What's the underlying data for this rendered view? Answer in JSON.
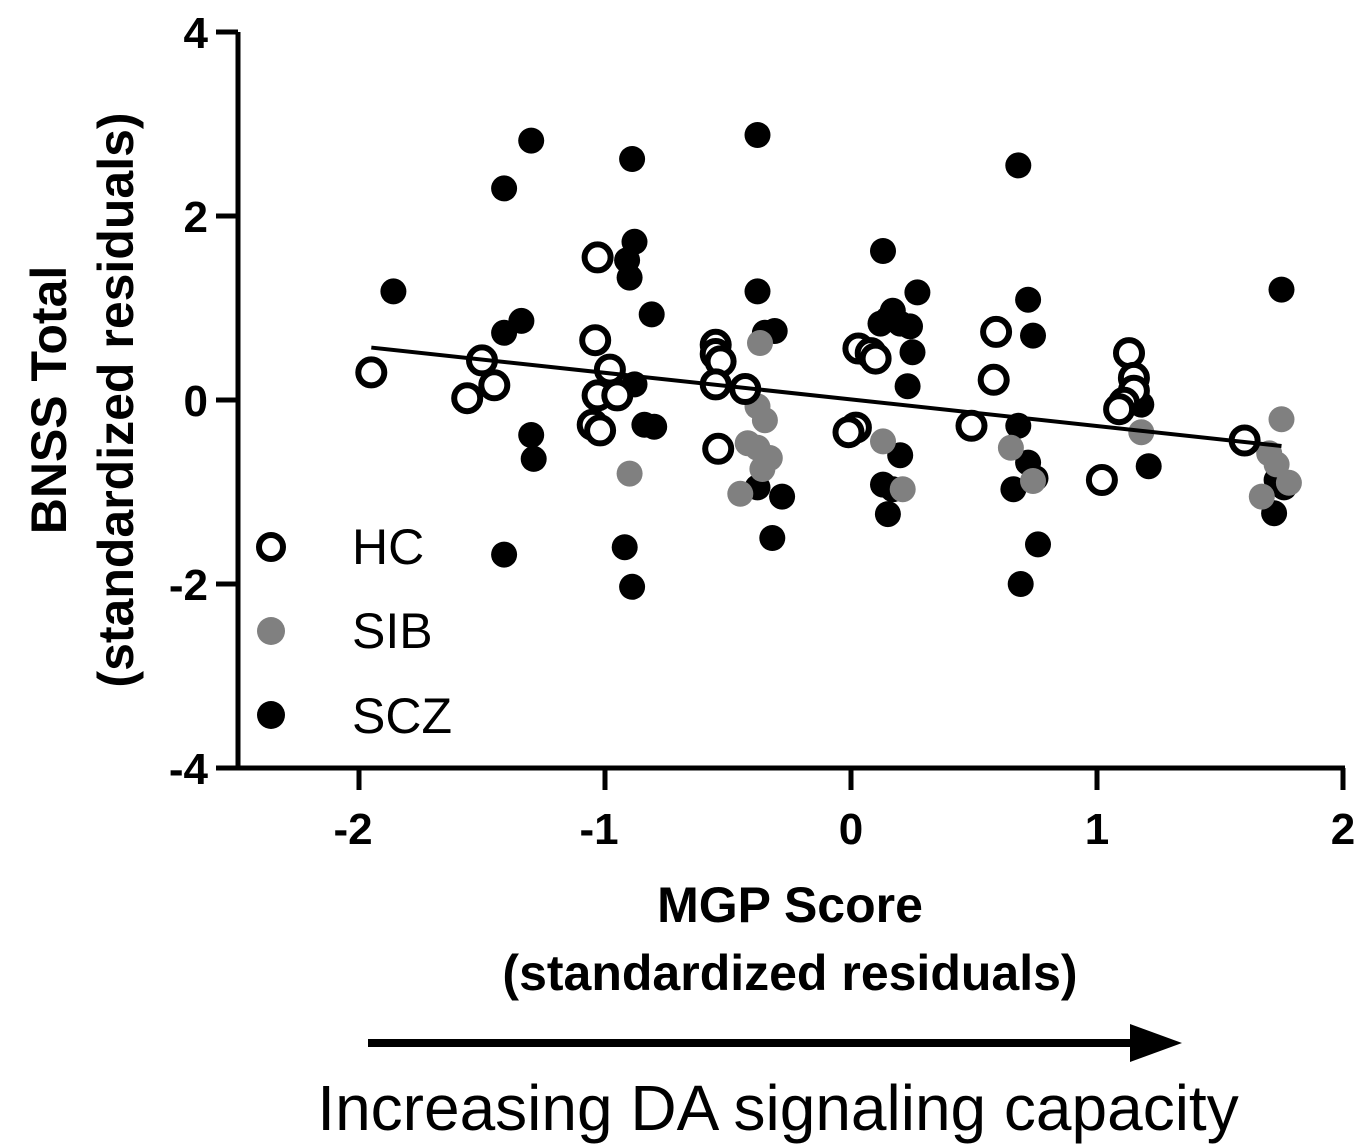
{
  "chart_data": {
    "type": "scatter",
    "title": "",
    "xlabel": [
      "MGP Score",
      "(standardized residuals)"
    ],
    "ylabel": [
      "BNSS Total",
      "(standardized residuals)"
    ],
    "xlim": [
      -2.5,
      2
    ],
    "ylim": [
      -4,
      4
    ],
    "x_ticks": [
      -2,
      -1,
      0,
      1,
      2
    ],
    "y_ticks": [
      4,
      2,
      0,
      -2,
      -4
    ],
    "x_tick_labels": [
      "-2",
      "-1",
      "0",
      "1",
      "2"
    ],
    "y_tick_labels": [
      "4",
      "2",
      "0",
      "-2",
      "-4"
    ],
    "grid": false,
    "legend_position": "bottom-left",
    "series": [
      {
        "name": "HC",
        "marker": "open-circle",
        "color": "#000000",
        "points": [
          [
            -1.95,
            0.3
          ],
          [
            -1.56,
            0.02
          ],
          [
            -1.5,
            0.43
          ],
          [
            -1.45,
            0.16
          ],
          [
            -1.03,
            1.55
          ],
          [
            -1.04,
            0.65
          ],
          [
            -0.98,
            0.33
          ],
          [
            -1.03,
            0.05
          ],
          [
            -0.95,
            0.05
          ],
          [
            -1.05,
            -0.27
          ],
          [
            -1.02,
            -0.33
          ],
          [
            -0.55,
            0.6
          ],
          [
            -0.55,
            0.5
          ],
          [
            -0.53,
            0.42
          ],
          [
            -0.55,
            0.17
          ],
          [
            -0.43,
            0.12
          ],
          [
            -0.54,
            -0.53
          ],
          [
            0.03,
            0.56
          ],
          [
            0.08,
            0.51
          ],
          [
            0.1,
            0.45
          ],
          [
            0.02,
            -0.3
          ],
          [
            -0.01,
            -0.35
          ],
          [
            0.59,
            0.74
          ],
          [
            0.58,
            0.22
          ],
          [
            0.49,
            -0.28
          ],
          [
            1.13,
            0.51
          ],
          [
            1.15,
            0.24
          ],
          [
            1.15,
            0.1
          ],
          [
            1.11,
            -0.03
          ],
          [
            1.09,
            -0.1
          ],
          [
            1.02,
            -0.87
          ],
          [
            1.6,
            -0.44
          ]
        ]
      },
      {
        "name": "SIB",
        "marker": "filled-circle",
        "color": "#808080",
        "points": [
          [
            -0.9,
            -0.8
          ],
          [
            -0.37,
            0.62
          ],
          [
            -0.38,
            -0.07
          ],
          [
            -0.35,
            -0.22
          ],
          [
            -0.42,
            -0.47
          ],
          [
            -0.38,
            -0.52
          ],
          [
            -0.33,
            -0.63
          ],
          [
            -0.36,
            -0.75
          ],
          [
            -0.45,
            -1.02
          ],
          [
            0.13,
            -0.45
          ],
          [
            0.21,
            -0.97
          ],
          [
            0.65,
            -0.52
          ],
          [
            0.74,
            -0.88
          ],
          [
            1.18,
            -0.35
          ],
          [
            1.75,
            -0.21
          ],
          [
            1.7,
            -0.58
          ],
          [
            1.73,
            -0.7
          ],
          [
            1.78,
            -0.9
          ],
          [
            1.67,
            -1.05
          ]
        ]
      },
      {
        "name": "SCZ",
        "marker": "filled-circle",
        "color": "#000000",
        "points": [
          [
            -1.86,
            1.18
          ],
          [
            -1.41,
            2.3
          ],
          [
            -1.3,
            2.82
          ],
          [
            -1.41,
            0.73
          ],
          [
            -1.34,
            0.86
          ],
          [
            -1.3,
            -0.38
          ],
          [
            -1.29,
            -0.64
          ],
          [
            -1.41,
            -1.68
          ],
          [
            -0.89,
            2.62
          ],
          [
            -0.88,
            1.72
          ],
          [
            -0.91,
            1.52
          ],
          [
            -0.9,
            1.33
          ],
          [
            -0.81,
            0.93
          ],
          [
            -0.88,
            0.17
          ],
          [
            -0.84,
            -0.27
          ],
          [
            -0.8,
            -0.29
          ],
          [
            -0.92,
            -1.6
          ],
          [
            -0.89,
            -2.03
          ],
          [
            -0.38,
            2.88
          ],
          [
            -0.38,
            1.18
          ],
          [
            -0.35,
            0.73
          ],
          [
            -0.31,
            0.75
          ],
          [
            -0.38,
            -0.95
          ],
          [
            -0.28,
            -1.05
          ],
          [
            -0.32,
            -1.5
          ],
          [
            0.13,
            1.62
          ],
          [
            0.12,
            0.83
          ],
          [
            0.15,
            0.88
          ],
          [
            0.17,
            0.97
          ],
          [
            0.2,
            0.83
          ],
          [
            0.24,
            0.8
          ],
          [
            0.25,
            0.52
          ],
          [
            0.27,
            1.17
          ],
          [
            0.23,
            0.15
          ],
          [
            0.2,
            -0.6
          ],
          [
            0.13,
            -0.92
          ],
          [
            0.17,
            -0.97
          ],
          [
            0.15,
            -1.24
          ],
          [
            0.68,
            2.55
          ],
          [
            0.72,
            1.09
          ],
          [
            0.74,
            0.7
          ],
          [
            0.68,
            -0.28
          ],
          [
            0.72,
            -0.68
          ],
          [
            0.75,
            -0.85
          ],
          [
            0.66,
            -0.97
          ],
          [
            0.76,
            -1.57
          ],
          [
            0.69,
            -2.0
          ],
          [
            1.18,
            -0.05
          ],
          [
            1.21,
            -0.72
          ],
          [
            1.75,
            1.2
          ],
          [
            1.73,
            -0.87
          ],
          [
            1.76,
            -0.95
          ],
          [
            1.72,
            -1.23
          ]
        ]
      }
    ],
    "trendline": {
      "x": [
        -1.95,
        1.75
      ],
      "y": [
        0.57,
        -0.5
      ]
    }
  },
  "legend": [
    {
      "label": "HC",
      "marker": "open-circle",
      "color": "#000000"
    },
    {
      "label": "SIB",
      "marker": "filled-circle",
      "color": "#808080"
    },
    {
      "label": "SCZ",
      "marker": "filled-circle",
      "color": "#000000"
    }
  ],
  "caption": "Increasing DA signaling capacity"
}
